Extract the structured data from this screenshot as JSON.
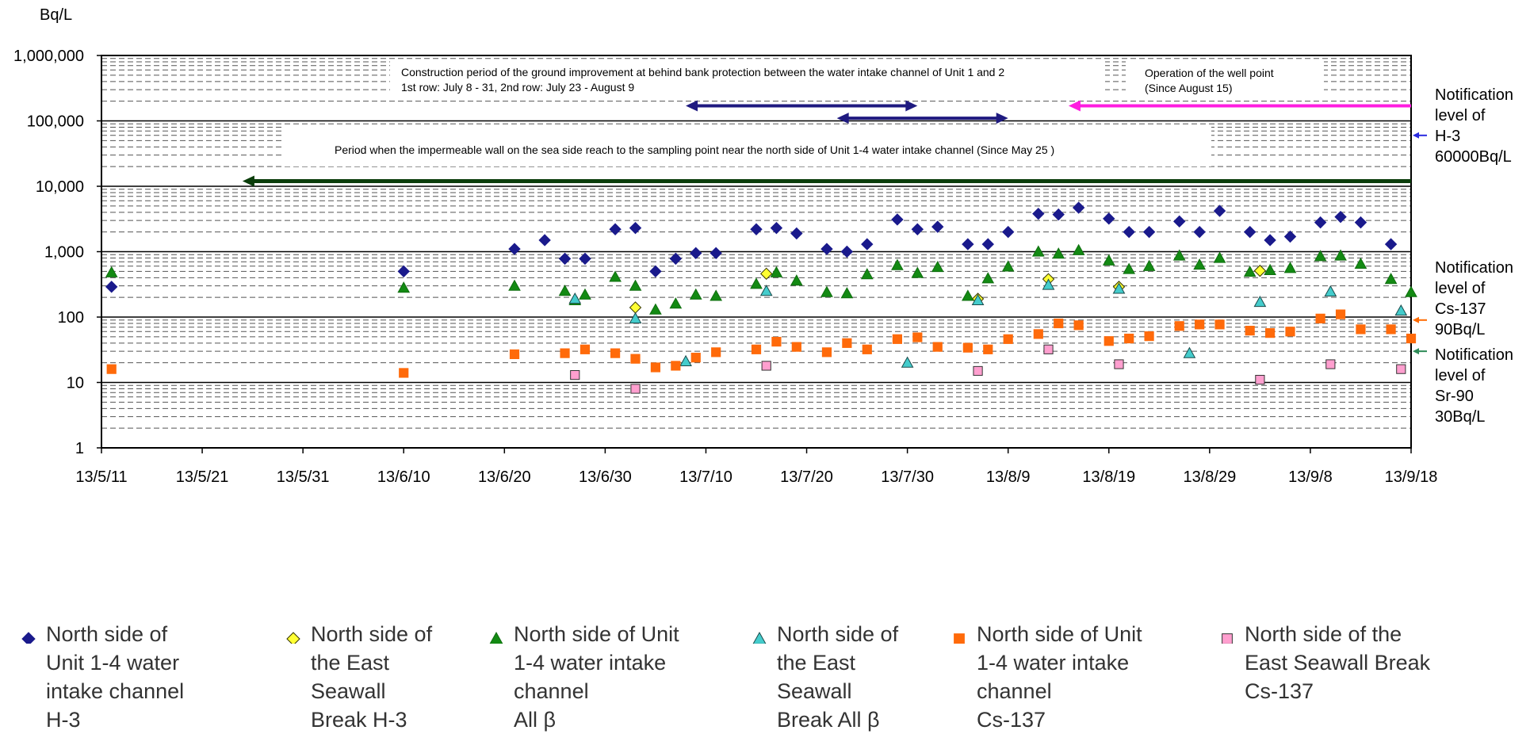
{
  "chart_data": {
    "type": "scatter",
    "y_unit_label": "Bq/L",
    "y_scale": "log",
    "ylim": [
      1,
      1000000
    ],
    "y_ticks": [
      "1",
      "10",
      "100",
      "1,000",
      "10,000",
      "100,000",
      "1,000,000"
    ],
    "y_tick_values": [
      1,
      10,
      100,
      1000,
      10000,
      100000,
      1000000
    ],
    "xlim": [
      "2013-05-11",
      "2013-09-18"
    ],
    "x_ticks": [
      "13/5/11",
      "13/5/21",
      "13/5/31",
      "13/6/10",
      "13/6/20",
      "13/6/30",
      "13/7/10",
      "13/7/20",
      "13/7/30",
      "13/8/9",
      "13/8/19",
      "13/8/29",
      "13/9/8",
      "13/9/18"
    ],
    "x_tick_values": [
      "2013-05-11",
      "2013-05-21",
      "2013-05-31",
      "2013-06-10",
      "2013-06-20",
      "2013-06-30",
      "2013-07-10",
      "2013-07-20",
      "2013-07-30",
      "2013-08-09",
      "2013-08-19",
      "2013-08-29",
      "2013-09-08",
      "2013-09-18"
    ],
    "grid": "log minor dashed",
    "legend_position": "bottom",
    "annotations": {
      "construction_line1": "Construction period of the ground improvement at behind bank protection between the water intake channel of Unit 1 and 2",
      "construction_line2": "1st row: July 8 - 31, 2nd row: July 23 - August 9",
      "wellpoint_line1": "Operation of the well point",
      "wellpoint_line2": "(Since August 15)",
      "wall_text": "Period when the impermeable wall on the sea side reach to the sampling point near the north side of Unit 1-4 water intake channel (Since May 25 )"
    },
    "arrows": [
      {
        "name": "construction-1st-row",
        "from": "2013-07-08",
        "to": "2013-07-31",
        "y": 170000,
        "color": "#1f1a80",
        "heads": "both"
      },
      {
        "name": "construction-2nd-row",
        "from": "2013-07-23",
        "to": "2013-08-09",
        "y": 110000,
        "color": "#1f1a80",
        "heads": "both"
      },
      {
        "name": "well-point",
        "from": "2013-08-15",
        "to": "2013-09-18",
        "y": 170000,
        "color": "#ff1de0",
        "heads": "start"
      },
      {
        "name": "impermeable-wall",
        "from": "2013-05-25",
        "to": "2013-09-18",
        "y": 12000,
        "color": "#0b3d0b",
        "heads": "start"
      }
    ],
    "notifications": [
      {
        "lines": [
          "Notification",
          "level of",
          "H-3",
          "60000Bq/L"
        ],
        "value": 60000,
        "color": "#2a2ae0"
      },
      {
        "lines": [
          "Notification",
          "level of",
          "Cs-137",
          "90Bq/L"
        ],
        "value": 90,
        "color": "#ff6a00"
      },
      {
        "lines": [
          "Notification",
          "level of",
          "Sr-90",
          "30Bq/L"
        ],
        "value": 30,
        "color": "#2e8b57"
      }
    ],
    "series": [
      {
        "name": "North side of\nUnit 1-4 water\nintake channel\nH-3",
        "marker": "diamond",
        "color": "#1a1a8c",
        "stroke": "#1a1a8c",
        "points": [
          [
            "2013-05-12",
            290
          ],
          [
            "2013-06-10",
            500
          ],
          [
            "2013-06-21",
            1100
          ],
          [
            "2013-06-24",
            1500
          ],
          [
            "2013-06-26",
            780
          ],
          [
            "2013-06-28",
            780
          ],
          [
            "2013-07-01",
            2200
          ],
          [
            "2013-07-03",
            2300
          ],
          [
            "2013-07-05",
            500
          ],
          [
            "2013-07-07",
            780
          ],
          [
            "2013-07-09",
            950
          ],
          [
            "2013-07-11",
            950
          ],
          [
            "2013-07-15",
            2200
          ],
          [
            "2013-07-17",
            2300
          ],
          [
            "2013-07-19",
            1900
          ],
          [
            "2013-07-22",
            1100
          ],
          [
            "2013-07-24",
            1000
          ],
          [
            "2013-07-26",
            1300
          ],
          [
            "2013-07-29",
            3100
          ],
          [
            "2013-07-31",
            2200
          ],
          [
            "2013-08-02",
            2400
          ],
          [
            "2013-08-05",
            1300
          ],
          [
            "2013-08-07",
            1300
          ],
          [
            "2013-08-09",
            2000
          ],
          [
            "2013-08-12",
            3800
          ],
          [
            "2013-08-14",
            3700
          ],
          [
            "2013-08-16",
            4700
          ],
          [
            "2013-08-19",
            3200
          ],
          [
            "2013-08-21",
            2000
          ],
          [
            "2013-08-23",
            2000
          ],
          [
            "2013-08-26",
            2900
          ],
          [
            "2013-08-28",
            2000
          ],
          [
            "2013-08-30",
            4200
          ],
          [
            "2013-09-02",
            2000
          ],
          [
            "2013-09-04",
            1500
          ],
          [
            "2013-09-06",
            1700
          ],
          [
            "2013-09-09",
            2800
          ],
          [
            "2013-09-11",
            3400
          ],
          [
            "2013-09-13",
            2800
          ],
          [
            "2013-09-16",
            1300
          ]
        ]
      },
      {
        "name": "North side of\nthe East\nSeawall\nBreak H-3",
        "marker": "diamond",
        "color": "#ffff33",
        "stroke": "#333300",
        "points": [
          [
            "2013-07-03",
            140
          ],
          [
            "2013-07-16",
            460
          ],
          [
            "2013-08-06",
            190
          ],
          [
            "2013-08-13",
            380
          ],
          [
            "2013-08-20",
            290
          ],
          [
            "2013-09-03",
            510
          ]
        ]
      },
      {
        "name": "North side of Unit\n1-4 water intake\nchannel\nAll β",
        "marker": "triangle",
        "color": "#138a13",
        "stroke": "#0f6e0f",
        "points": [
          [
            "2013-05-12",
            480
          ],
          [
            "2013-06-10",
            280
          ],
          [
            "2013-06-21",
            300
          ],
          [
            "2013-06-26",
            250
          ],
          [
            "2013-06-27",
            180
          ],
          [
            "2013-06-28",
            220
          ],
          [
            "2013-07-01",
            410
          ],
          [
            "2013-07-03",
            300
          ],
          [
            "2013-07-05",
            130
          ],
          [
            "2013-07-07",
            160
          ],
          [
            "2013-07-09",
            220
          ],
          [
            "2013-07-11",
            210
          ],
          [
            "2013-07-15",
            320
          ],
          [
            "2013-07-17",
            480
          ],
          [
            "2013-07-19",
            360
          ],
          [
            "2013-07-22",
            240
          ],
          [
            "2013-07-24",
            230
          ],
          [
            "2013-07-26",
            450
          ],
          [
            "2013-07-29",
            620
          ],
          [
            "2013-07-31",
            470
          ],
          [
            "2013-08-02",
            580
          ],
          [
            "2013-08-05",
            210
          ],
          [
            "2013-08-07",
            390
          ],
          [
            "2013-08-09",
            590
          ],
          [
            "2013-08-12",
            1000
          ],
          [
            "2013-08-14",
            930
          ],
          [
            "2013-08-16",
            1050
          ],
          [
            "2013-08-19",
            730
          ],
          [
            "2013-08-21",
            540
          ],
          [
            "2013-08-23",
            600
          ],
          [
            "2013-08-26",
            870
          ],
          [
            "2013-08-28",
            630
          ],
          [
            "2013-08-30",
            800
          ],
          [
            "2013-09-02",
            490
          ],
          [
            "2013-09-04",
            520
          ],
          [
            "2013-09-06",
            560
          ],
          [
            "2013-09-09",
            850
          ],
          [
            "2013-09-11",
            870
          ],
          [
            "2013-09-13",
            650
          ],
          [
            "2013-09-16",
            380
          ],
          [
            "2013-09-18",
            240
          ]
        ]
      },
      {
        "name": "North side of\nthe East\nSeawall\nBreak All β",
        "marker": "triangle",
        "color": "#44cccc",
        "stroke": "#1a4a4a",
        "points": [
          [
            "2013-06-27",
            190
          ],
          [
            "2013-07-03",
            95
          ],
          [
            "2013-07-08",
            21
          ],
          [
            "2013-07-16",
            250
          ],
          [
            "2013-07-30",
            20
          ],
          [
            "2013-08-06",
            180
          ],
          [
            "2013-08-13",
            310
          ],
          [
            "2013-08-20",
            270
          ],
          [
            "2013-08-27",
            28
          ],
          [
            "2013-09-03",
            170
          ],
          [
            "2013-09-10",
            245
          ],
          [
            "2013-09-17",
            125
          ]
        ]
      },
      {
        "name": "North side of Unit\n1-4 water intake\nchannel\nCs-137",
        "marker": "square",
        "color": "#ff6a0a",
        "stroke": "#ff6a0a",
        "points": [
          [
            "2013-05-12",
            16
          ],
          [
            "2013-06-10",
            14
          ],
          [
            "2013-06-21",
            27
          ],
          [
            "2013-06-26",
            28
          ],
          [
            "2013-06-28",
            32
          ],
          [
            "2013-07-01",
            28
          ],
          [
            "2013-07-03",
            23
          ],
          [
            "2013-07-05",
            17
          ],
          [
            "2013-07-07",
            18
          ],
          [
            "2013-07-09",
            24
          ],
          [
            "2013-07-11",
            29
          ],
          [
            "2013-07-15",
            32
          ],
          [
            "2013-07-17",
            42
          ],
          [
            "2013-07-19",
            35
          ],
          [
            "2013-07-22",
            29
          ],
          [
            "2013-07-24",
            40
          ],
          [
            "2013-07-26",
            32
          ],
          [
            "2013-07-29",
            46
          ],
          [
            "2013-07-31",
            49
          ],
          [
            "2013-08-02",
            35
          ],
          [
            "2013-08-05",
            34
          ],
          [
            "2013-08-07",
            32
          ],
          [
            "2013-08-09",
            46
          ],
          [
            "2013-08-12",
            55
          ],
          [
            "2013-08-14",
            80
          ],
          [
            "2013-08-16",
            75
          ],
          [
            "2013-08-19",
            43
          ],
          [
            "2013-08-21",
            47
          ],
          [
            "2013-08-23",
            51
          ],
          [
            "2013-08-26",
            73
          ],
          [
            "2013-08-28",
            77
          ],
          [
            "2013-08-30",
            77
          ],
          [
            "2013-09-02",
            62
          ],
          [
            "2013-09-04",
            57
          ],
          [
            "2013-09-06",
            60
          ],
          [
            "2013-09-09",
            95
          ],
          [
            "2013-09-11",
            110
          ],
          [
            "2013-09-13",
            65
          ],
          [
            "2013-09-16",
            65
          ],
          [
            "2013-09-18",
            47
          ]
        ]
      },
      {
        "name": "North side of the\nEast Seawall Break\nCs-137",
        "marker": "square",
        "color": "#ff9fcf",
        "stroke": "#333333",
        "points": [
          [
            "2013-06-27",
            13
          ],
          [
            "2013-07-03",
            8
          ],
          [
            "2013-07-16",
            18
          ],
          [
            "2013-08-06",
            15
          ],
          [
            "2013-08-13",
            32
          ],
          [
            "2013-08-20",
            19
          ],
          [
            "2013-09-03",
            11
          ],
          [
            "2013-09-10",
            19
          ],
          [
            "2013-09-17",
            16
          ]
        ]
      }
    ]
  }
}
